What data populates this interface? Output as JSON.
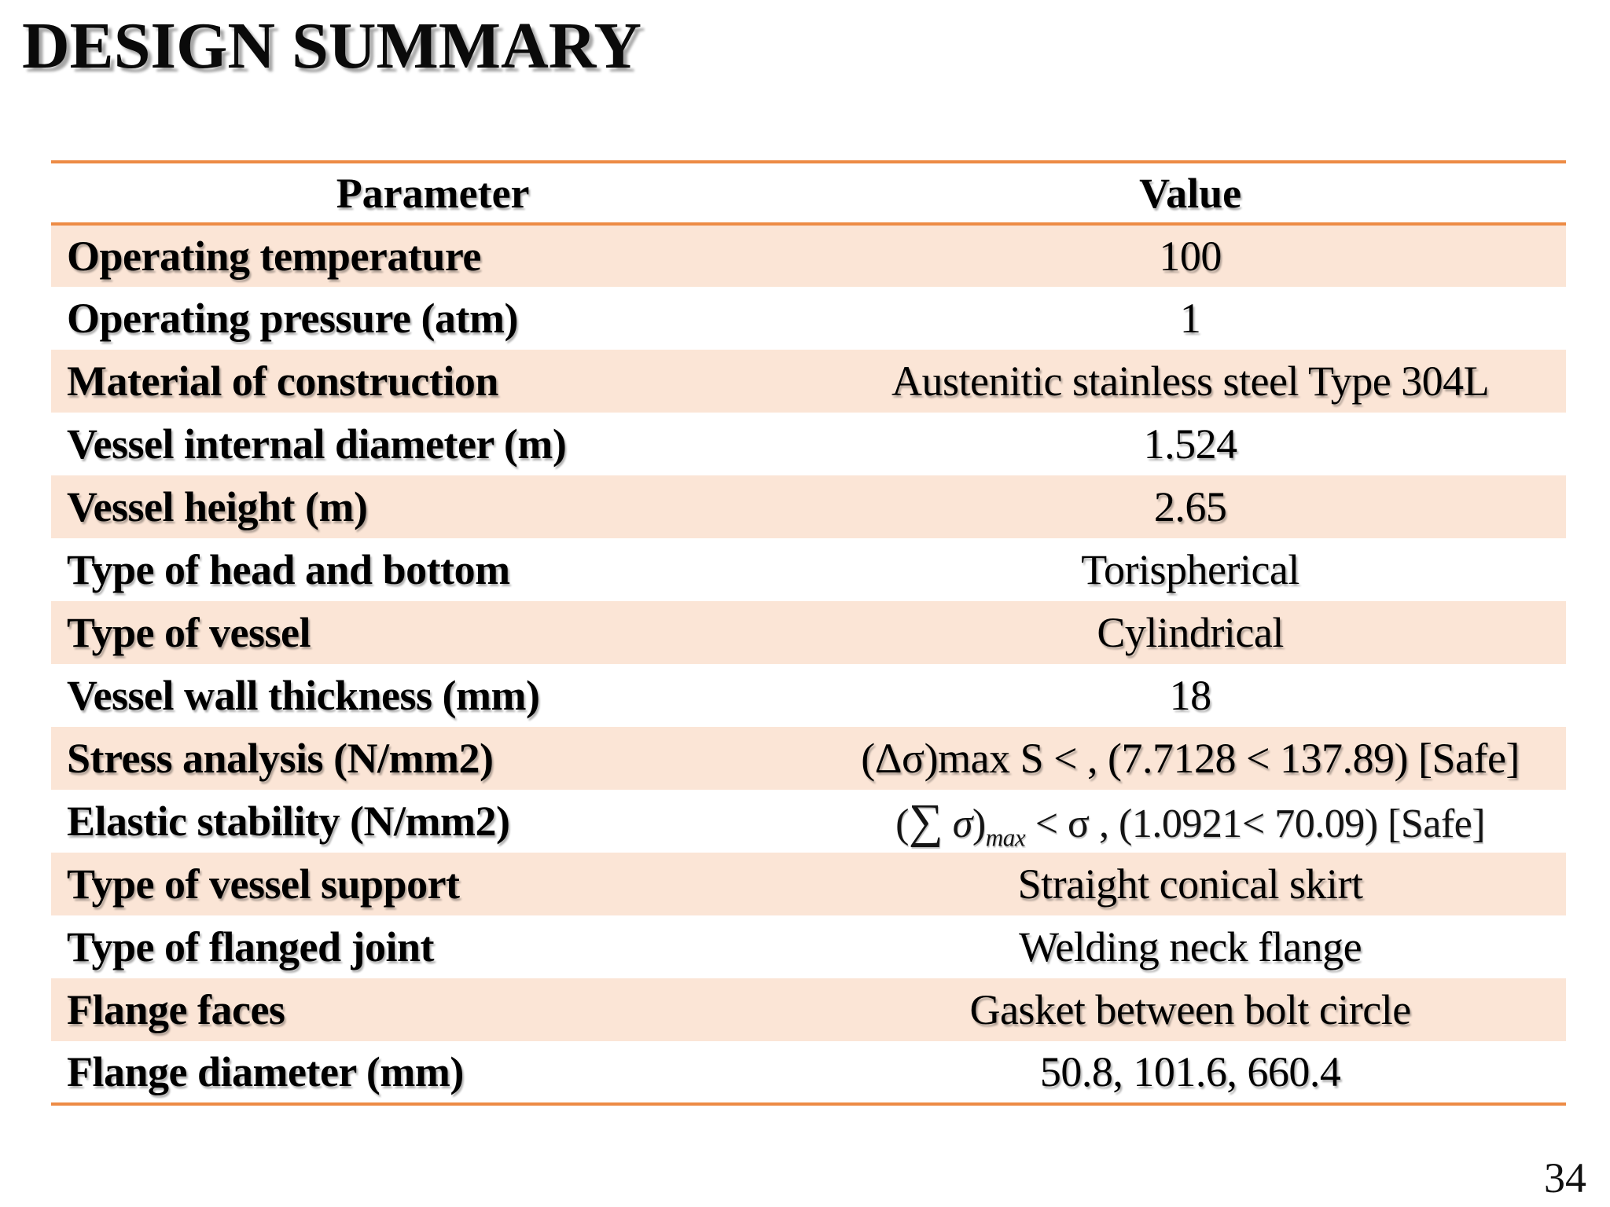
{
  "slide": {
    "title": "DESIGN SUMMARY",
    "page_number": "34"
  },
  "colors": {
    "band_fill": "#fbe5d6",
    "table_border": "#ed8b45",
    "text": "#000000"
  },
  "table": {
    "headers": [
      "Parameter",
      "Value"
    ],
    "rows": [
      {
        "parameter": "Operating temperature",
        "value": "100",
        "shaded": true
      },
      {
        "parameter": "Operating pressure (atm)",
        "value": "1",
        "shaded": false
      },
      {
        "parameter": "Material of construction",
        "value": "Austenitic stainless steel Type 304L",
        "shaded": true
      },
      {
        "parameter": "Vessel internal diameter (m)",
        "value": "1.524",
        "shaded": false
      },
      {
        "parameter": "Vessel height (m)",
        "value": "2.65",
        "shaded": true
      },
      {
        "parameter": "Type of head and bottom",
        "value": "Torispherical",
        "shaded": false
      },
      {
        "parameter": "Type of vessel",
        "value": "Cylindrical",
        "shaded": true
      },
      {
        "parameter": "Vessel wall thickness (mm)",
        "value": "18",
        "shaded": false
      },
      {
        "parameter": "Stress analysis (N/mm2)",
        "value": "(Δσ)max S < , (7.7128 < 137.89) [Safe]",
        "shaded": true
      },
      {
        "parameter": "Elastic stability (N/mm2)",
        "value_segments": [
          {
            "text": "("
          },
          {
            "text": "∑",
            "big": true
          },
          {
            "text": " "
          },
          {
            "text": "σ",
            "italic": true
          },
          {
            "text": ")"
          },
          {
            "text": "max",
            "sub": true,
            "italic": true
          },
          {
            "text": " < σ , (1.0921< 70.09) [Safe]"
          }
        ],
        "shaded": false
      },
      {
        "parameter": "Type of vessel support",
        "value": "Straight conical skirt",
        "shaded": true
      },
      {
        "parameter": "Type of flanged joint",
        "value": "Welding neck flange",
        "shaded": false
      },
      {
        "parameter": "Flange faces",
        "value": "Gasket between bolt circle",
        "shaded": true
      },
      {
        "parameter": "Flange diameter (mm)",
        "value": "50.8, 101.6, 660.4",
        "shaded": false
      }
    ]
  }
}
